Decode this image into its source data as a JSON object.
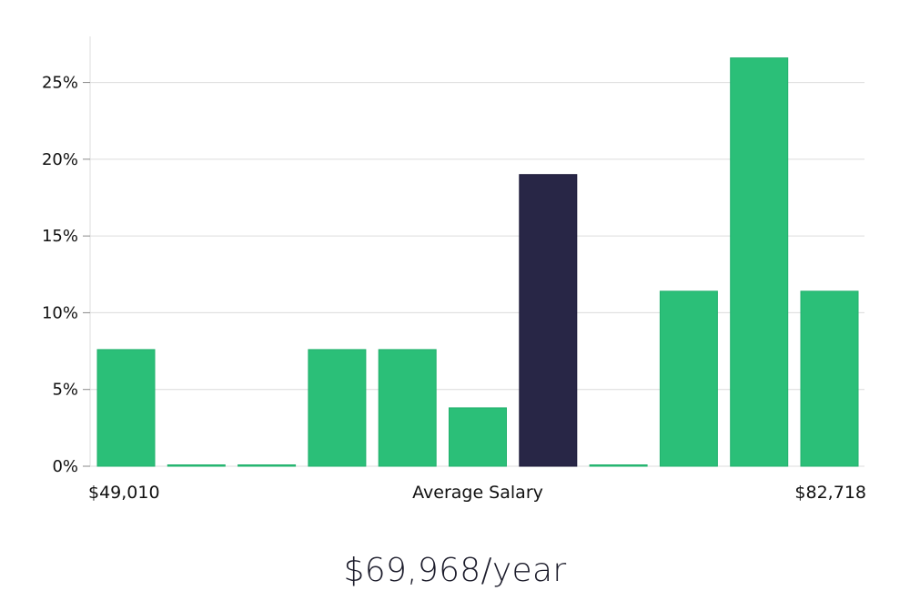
{
  "colors": {
    "bar": "#2bbf78",
    "bar_border": "#22b06d",
    "highlight": "#282646",
    "highlight_border": "#1d1b3a",
    "grid": "#dcdcdc",
    "text": "#111111"
  },
  "chart_data": {
    "type": "bar",
    "title": "",
    "xlabel": "Average Salary",
    "ylabel": "",
    "x_start_label": "$49,010",
    "x_end_label": "$82,718",
    "ylim": [
      0,
      28
    ],
    "yticks": [
      0,
      5,
      10,
      15,
      20,
      25
    ],
    "ytick_labels": [
      "0%",
      "5%",
      "10%",
      "15%",
      "20%",
      "25%"
    ],
    "values": [
      7.6,
      0,
      0,
      7.6,
      7.6,
      3.8,
      19.0,
      0,
      11.4,
      26.6,
      11.4
    ],
    "highlight_index": 6,
    "grid": true,
    "legend": "none"
  },
  "salary": {
    "headline": "$69,968/year"
  }
}
